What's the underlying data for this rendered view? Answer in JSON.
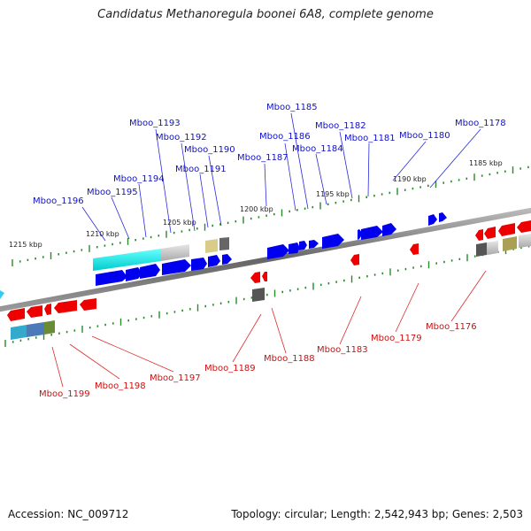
{
  "title": "Candidatus Methanoregula boonei 6A8, complete genome",
  "footer": {
    "accession": "Accession: NC_009712",
    "summary": "Topology: circular; Length: 2,542,943 bp; Genes: 2,503"
  },
  "colors": {
    "forward_gene": "#0000ee",
    "reverse_gene": "#ee0000",
    "forward_label": "#1010cc",
    "reverse_label": "#cc1010",
    "tick": "#2a8a2a",
    "backbone": "#777777"
  },
  "scale_labels": [
    "1185 kbp",
    "1190 kbp",
    "1195 kbp",
    "1200 kbp",
    "1205 kbp",
    "1210 kbp",
    "1215 kbp"
  ],
  "forward_genes": [
    "Mboo_1178",
    "Mboo_1180",
    "Mboo_1181",
    "Mboo_1182",
    "Mboo_1184",
    "Mboo_1185",
    "Mboo_1186",
    "Mboo_1187",
    "Mboo_1190",
    "Mboo_1191",
    "Mboo_1192",
    "Mboo_1193",
    "Mboo_1194",
    "Mboo_1195",
    "Mboo_1196"
  ],
  "reverse_genes": [
    "Mboo_1176",
    "Mboo_1179",
    "Mboo_1183",
    "Mboo_1188",
    "Mboo_1189",
    "Mboo_1197",
    "Mboo_1198",
    "Mboo_1199"
  ]
}
